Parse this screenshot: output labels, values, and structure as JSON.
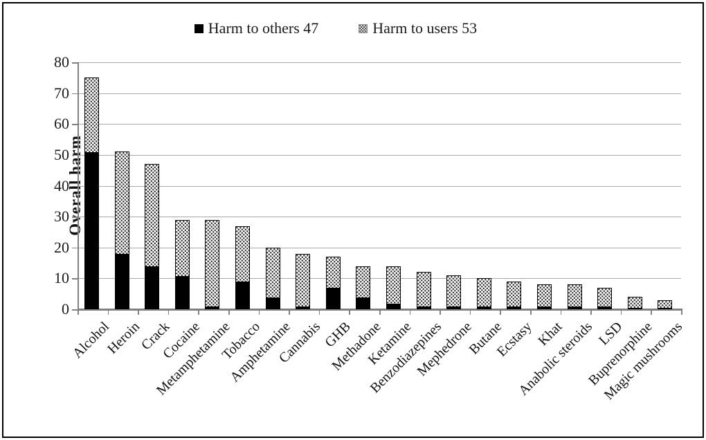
{
  "legend": {
    "items": [
      {
        "label": "Harm to others 47",
        "swatch": "black-square"
      },
      {
        "label": "Harm to users 53",
        "swatch": "dotted-square"
      }
    ]
  },
  "chart_data": {
    "type": "bar",
    "stacked": true,
    "title": "",
    "xlabel": "",
    "ylabel": "Overall harm",
    "ylim": [
      0,
      80
    ],
    "yticks": [
      0,
      10,
      20,
      30,
      40,
      50,
      60,
      70,
      80
    ],
    "grid": "horizontal",
    "legend_position": "top-center",
    "categories": [
      "Alcohol",
      "Heroin",
      "Crack",
      "Cocaine",
      "Metamphetamine",
      "Tobacco",
      "Amphetamine",
      "Cannabis",
      "GHB",
      "Methadone",
      "Ketamine",
      "Benzodiazepines",
      "Mephedrone",
      "Butane",
      "Ecstasy",
      "Khat",
      "Anabolic steroids",
      "LSD",
      "Buprenorphine",
      "Magic mushrooms"
    ],
    "series": [
      {
        "name": "Harm to others 47",
        "style": "solid-black",
        "color": "#000000",
        "values": [
          51,
          18,
          14,
          11,
          1,
          9,
          4,
          1,
          7,
          4,
          2,
          1,
          1,
          1,
          1,
          1,
          1,
          1,
          0.5,
          0.5
        ]
      },
      {
        "name": "Harm to users 53",
        "style": "dotted-pattern",
        "color": "#ffffff",
        "values": [
          24,
          33,
          33,
          18,
          28,
          18,
          16,
          17,
          10,
          10,
          12,
          11,
          10,
          9,
          8,
          7,
          7,
          6,
          3.5,
          2.5
        ]
      }
    ],
    "totals": [
      75,
      51,
      47,
      29,
      29,
      27,
      20,
      18,
      17,
      14,
      14,
      12,
      11,
      10,
      9,
      8,
      8,
      7,
      4,
      3
    ]
  },
  "colors": {
    "background": "#ffffff",
    "figure_border": "#000000",
    "gridline": "#a8a8a8",
    "axis": "#808080",
    "bar_outline": "#000000",
    "others_fill": "#000000",
    "users_fill": "#ffffff dotted"
  }
}
